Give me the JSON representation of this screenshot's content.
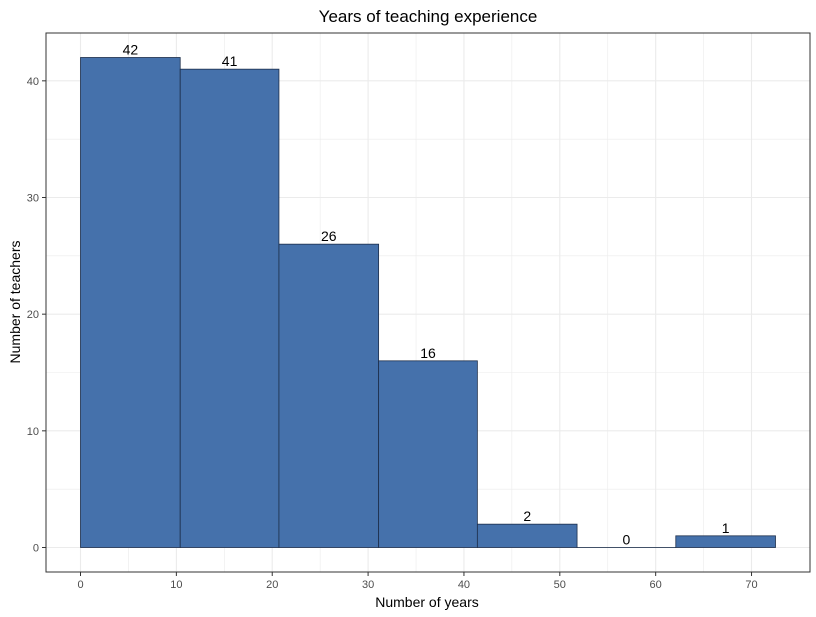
{
  "chart_data": {
    "type": "bar",
    "title": "Years of teaching experience",
    "xlabel": "Number of years",
    "ylabel": "Number of teachers",
    "bins": [
      {
        "start": 0.0,
        "end": 10.4,
        "value": 42
      },
      {
        "start": 10.4,
        "end": 20.7,
        "value": 41
      },
      {
        "start": 20.7,
        "end": 31.1,
        "value": 26
      },
      {
        "start": 31.1,
        "end": 41.4,
        "value": 16
      },
      {
        "start": 41.4,
        "end": 51.8,
        "value": 2
      },
      {
        "start": 51.8,
        "end": 62.1,
        "value": 0
      },
      {
        "start": 62.1,
        "end": 72.5,
        "value": 1
      }
    ],
    "xlim": [
      -3.6,
      76.1
    ],
    "ylim": [
      -2.1,
      44.1
    ],
    "x_ticks": [
      0,
      10,
      20,
      30,
      40,
      50,
      60,
      70
    ],
    "y_ticks": [
      0,
      10,
      20,
      30,
      40
    ],
    "grid": true,
    "colors": {
      "bar_fill": "#4571ab",
      "bar_stroke": "#1c2e4a",
      "grid": "#ebebeb",
      "panel_border": "#333333"
    }
  }
}
